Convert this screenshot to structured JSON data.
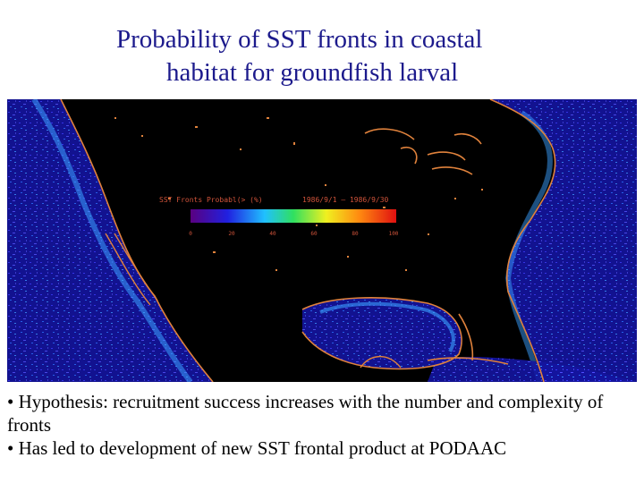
{
  "slide": {
    "title_line1": "Probability of SST fronts in coastal",
    "title_line2": "habitat for groundfish larval"
  },
  "map": {
    "legend_title": "SST Fronts Probabl(> (%)",
    "date_range": "1986/9/1 — 1986/9/30",
    "legend_ticks": [
      "0",
      "20",
      "40",
      "60",
      "80",
      "100"
    ],
    "colors": {
      "background": "#000000",
      "land_outline": "#e0823c",
      "ocean_low": "#1a1ab0",
      "ocean_high": "#3aa0ff"
    }
  },
  "bullets": [
    "• Hypothesis: recruitment success increases with the number and complexity of fronts",
    "• Has led to development of new SST frontal product at PODAAC"
  ]
}
